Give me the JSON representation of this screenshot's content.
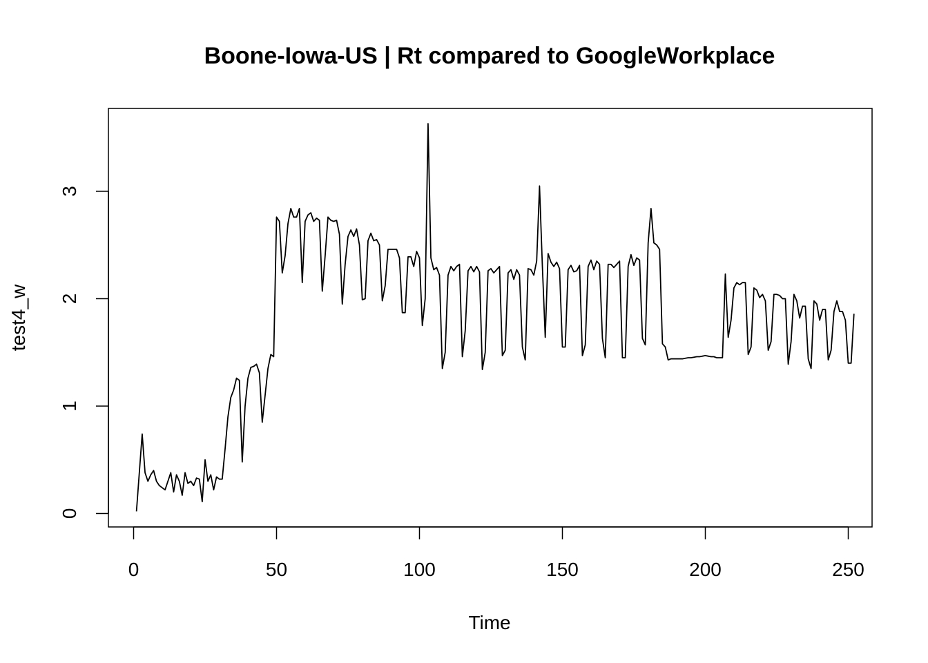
{
  "chart_data": {
    "type": "line",
    "title": "Boone-Iowa-US | Rt compared to GoogleWorkplace",
    "xlabel": "Time",
    "ylabel": "test4_w",
    "xlim": [
      1,
      248
    ],
    "ylim": [
      0,
      3.64
    ],
    "x_ticks": [
      0,
      50,
      100,
      150,
      200,
      250
    ],
    "y_ticks": [
      0,
      1,
      2,
      3
    ],
    "grid": false,
    "line_color": "#000000",
    "series": [
      {
        "x_start": 1,
        "x_step": 1,
        "values": [
          0.02,
          0.38,
          0.74,
          0.38,
          0.3,
          0.36,
          0.4,
          0.3,
          0.26,
          0.24,
          0.22,
          0.3,
          0.38,
          0.2,
          0.36,
          0.3,
          0.17,
          0.38,
          0.28,
          0.3,
          0.26,
          0.33,
          0.32,
          0.11,
          0.5,
          0.3,
          0.36,
          0.22,
          0.34,
          0.32,
          0.32,
          0.6,
          0.9,
          1.08,
          1.15,
          1.26,
          1.24,
          0.48,
          1.0,
          1.26,
          1.36,
          1.37,
          1.39,
          1.31,
          0.85,
          1.1,
          1.35,
          1.48,
          1.46,
          2.76,
          2.72,
          2.24,
          2.4,
          2.7,
          2.84,
          2.76,
          2.76,
          2.84,
          2.15,
          2.72,
          2.78,
          2.8,
          2.72,
          2.75,
          2.73,
          2.07,
          2.4,
          2.76,
          2.73,
          2.72,
          2.73,
          2.6,
          1.95,
          2.32,
          2.58,
          2.64,
          2.58,
          2.65,
          2.5,
          1.99,
          2.0,
          2.54,
          2.61,
          2.54,
          2.55,
          2.5,
          1.98,
          2.12,
          2.46,
          2.46,
          2.46,
          2.46,
          2.38,
          1.87,
          1.87,
          2.39,
          2.39,
          2.3,
          2.44,
          2.38,
          1.75,
          2.0,
          3.63,
          2.38,
          2.27,
          2.29,
          2.22,
          1.35,
          1.5,
          2.22,
          2.3,
          2.26,
          2.3,
          2.32,
          1.46,
          1.7,
          2.26,
          2.3,
          2.25,
          2.3,
          2.25,
          1.34,
          1.5,
          2.26,
          2.28,
          2.24,
          2.27,
          2.3,
          1.47,
          1.52,
          2.24,
          2.27,
          2.18,
          2.27,
          2.22,
          1.55,
          1.43,
          2.28,
          2.27,
          2.22,
          2.35,
          3.05,
          2.3,
          1.64,
          2.42,
          2.34,
          2.3,
          2.34,
          2.28,
          1.55,
          1.55,
          2.27,
          2.31,
          2.25,
          2.26,
          2.31,
          1.47,
          1.57,
          2.3,
          2.36,
          2.27,
          2.35,
          2.32,
          1.63,
          1.45,
          2.32,
          2.32,
          2.29,
          2.32,
          2.35,
          1.45,
          1.45,
          2.3,
          2.41,
          2.31,
          2.38,
          2.36,
          1.63,
          1.57,
          2.52,
          2.84,
          2.52,
          2.5,
          2.46,
          1.58,
          1.55,
          1.43,
          1.44,
          1.44,
          1.44,
          1.44,
          1.44,
          1.445,
          1.45,
          1.45,
          1.455,
          1.46,
          1.46,
          1.465,
          1.47,
          1.465,
          1.46,
          1.46,
          1.45,
          1.45,
          1.45,
          2.23,
          1.64,
          1.8,
          2.1,
          2.15,
          2.13,
          2.15,
          2.15,
          1.48,
          1.55,
          2.1,
          2.08,
          2.01,
          2.04,
          1.98,
          1.52,
          1.6,
          2.04,
          2.04,
          2.03,
          2.0,
          2.0,
          1.39,
          1.6,
          2.04,
          1.98,
          1.82,
          1.93,
          1.93,
          1.44,
          1.35,
          1.98,
          1.95,
          1.8,
          1.9,
          1.9,
          1.43,
          1.52,
          1.88,
          1.98,
          1.88,
          1.88,
          1.8,
          1.4,
          1.4,
          1.86
        ]
      }
    ]
  }
}
